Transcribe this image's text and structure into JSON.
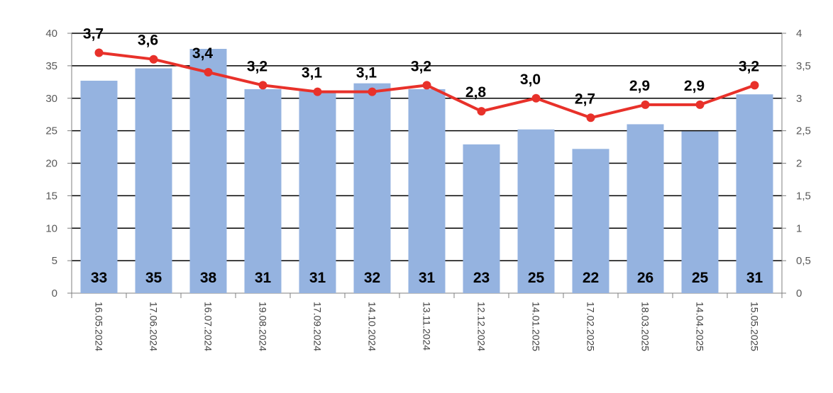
{
  "chart_data": {
    "type": "bar",
    "categories": [
      "16.05.2024",
      "17.06.2024",
      "16.07.2024",
      "19.08.2024",
      "17.09.2024",
      "14.10.2024",
      "13.11.2024",
      "12.12.2024",
      "14.01.2025",
      "17.02.2025",
      "18.03.2025",
      "14.04.2025",
      "15.05.2025"
    ],
    "series": [
      {
        "type": "bar",
        "axis": "left",
        "values": [
          32.7,
          34.6,
          37.6,
          31.4,
          31.1,
          32.3,
          31.4,
          22.9,
          25.2,
          22.2,
          26.0,
          24.9,
          30.6
        ],
        "data_labels": [
          "33",
          "35",
          "38",
          "31",
          "31",
          "32",
          "31",
          "23",
          "25",
          "22",
          "26",
          "25",
          "31"
        ]
      },
      {
        "type": "line",
        "axis": "right",
        "values": [
          3.7,
          3.6,
          3.4,
          3.2,
          3.1,
          3.1,
          3.2,
          2.8,
          3.0,
          2.7,
          2.9,
          2.9,
          3.2
        ],
        "data_labels": [
          "3,7",
          "3,6",
          "3,4",
          "3,2",
          "3,1",
          "3,1",
          "3,2",
          "2,8",
          "3,0",
          "2,7",
          "2,9",
          "2,9",
          "3,2"
        ]
      }
    ],
    "y_left": {
      "min": 0,
      "max": 40,
      "ticks": [
        "0",
        "5",
        "10",
        "15",
        "20",
        "25",
        "30",
        "35",
        "40"
      ]
    },
    "y_right": {
      "min": 0,
      "max": 4,
      "ticks": [
        "0",
        "0,5",
        "1",
        "1,5",
        "2",
        "2,5",
        "3",
        "3,5",
        "4"
      ]
    },
    "grid": true,
    "legend": "none",
    "colors": {
      "bar": "#95b3e0",
      "line": "#e8312a",
      "grid": "#000000",
      "axis": "#7f7f7f"
    }
  }
}
